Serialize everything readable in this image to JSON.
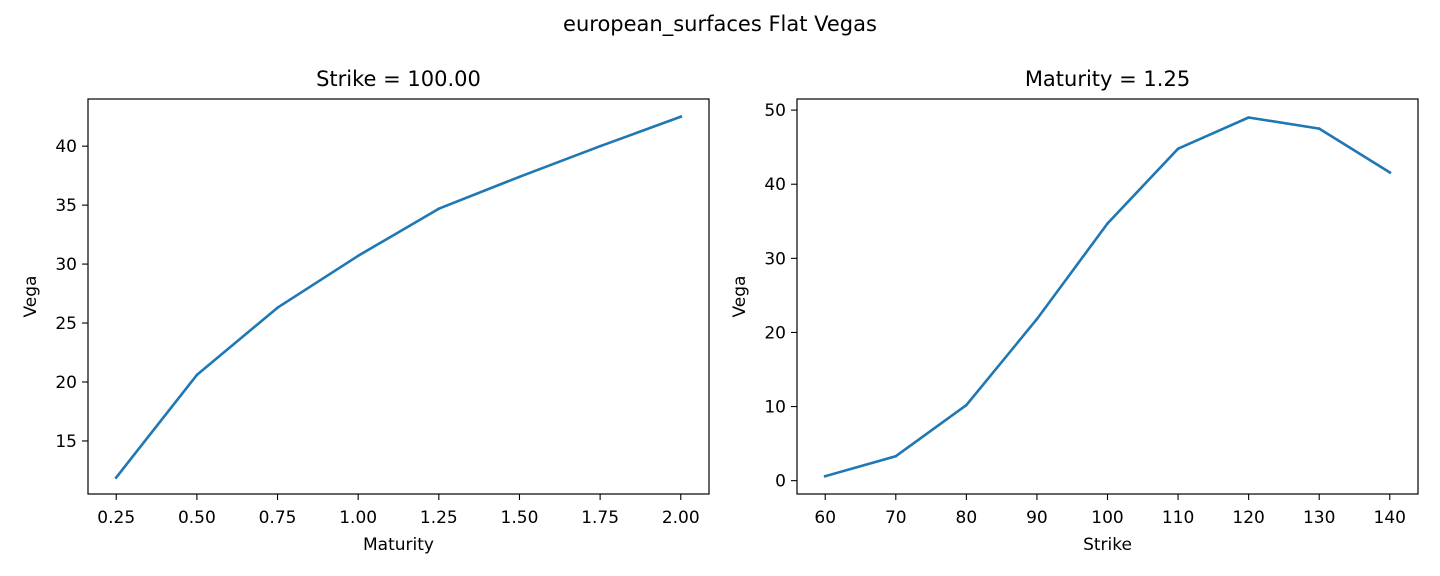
{
  "figure": {
    "suptitle": "european_surfaces Flat Vegas"
  },
  "chart_data": [
    {
      "type": "line",
      "title": "Strike = 100.00",
      "xlabel": "Maturity",
      "ylabel": "Vega",
      "xlim": [
        0.1625,
        2.0875
      ],
      "ylim": [
        10.5,
        44.0
      ],
      "xticks": [
        0.25,
        0.5,
        0.75,
        1.0,
        1.25,
        1.5,
        1.75,
        2.0
      ],
      "xtick_labels": [
        "0.25",
        "0.50",
        "0.75",
        "1.00",
        "1.25",
        "1.50",
        "1.75",
        "2.00"
      ],
      "yticks": [
        15,
        20,
        25,
        30,
        35,
        40
      ],
      "ytick_labels": [
        "15",
        "20",
        "25",
        "30",
        "35",
        "40"
      ],
      "grid": false,
      "line_color": "#1f77b4",
      "series": [
        {
          "x": [
            0.25,
            0.5,
            0.75,
            1.0,
            1.25,
            1.5,
            1.75,
            2.0
          ],
          "values": [
            11.9,
            20.6,
            26.3,
            30.7,
            34.7,
            37.4,
            40.0,
            42.5
          ]
        }
      ]
    },
    {
      "type": "line",
      "title": "Maturity = 1.25",
      "xlabel": "Strike",
      "ylabel": "Vega",
      "xlim": [
        56.0,
        144.0
      ],
      "ylim": [
        -1.8,
        51.5
      ],
      "xticks": [
        60,
        70,
        80,
        90,
        100,
        110,
        120,
        130,
        140
      ],
      "xtick_labels": [
        "60",
        "70",
        "80",
        "90",
        "100",
        "110",
        "120",
        "130",
        "140"
      ],
      "yticks": [
        0,
        10,
        20,
        30,
        40,
        50
      ],
      "ytick_labels": [
        "0",
        "10",
        "20",
        "30",
        "40",
        "50"
      ],
      "grid": false,
      "line_color": "#1f77b4",
      "series": [
        {
          "x": [
            60,
            70,
            80,
            90,
            100,
            110,
            120,
            130,
            140
          ],
          "values": [
            0.6,
            3.3,
            10.2,
            21.8,
            34.7,
            44.8,
            49.0,
            47.5,
            41.6
          ]
        }
      ]
    }
  ]
}
